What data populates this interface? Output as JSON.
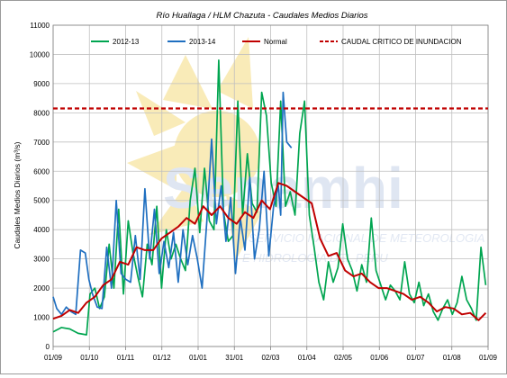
{
  "chart_data": {
    "type": "line",
    "title": "Río Huallaga / HLM Chazuta - Caudales Medios Diarios",
    "ylabel": "Caudales Medios Diarios (m³/s)",
    "xlabel": "",
    "ylim": [
      0,
      11000
    ],
    "yticks": [
      0,
      1000,
      2000,
      3000,
      4000,
      5000,
      6000,
      7000,
      8000,
      9000,
      10000,
      11000
    ],
    "x_tick_labels": [
      "01/09",
      "01/10",
      "01/11",
      "01/12",
      "01/01",
      "31/01",
      "02/03",
      "01/04",
      "02/05",
      "01/06",
      "01/07",
      "01/08",
      "01/09"
    ],
    "grid": true,
    "legend_position": "top",
    "threshold": {
      "name": "CAUDAL CRITICO DE INUNDACION",
      "value": 8150,
      "color": "#c00000"
    },
    "watermark": {
      "logo_text": "Senamhi",
      "line1": "SERVICIO NACIONAL DE METEOROLOGIA",
      "line2": "E HIDROLOGIA DEL PERU"
    },
    "series": [
      {
        "name": "2012-13",
        "color": "#00a550",
        "x": [
          1,
          8,
          15,
          22,
          29,
          32,
          36,
          40,
          44,
          48,
          52,
          56,
          60,
          64,
          68,
          72,
          76,
          80,
          84,
          88,
          92,
          96,
          100,
          104,
          108,
          112,
          116,
          120,
          124,
          128,
          132,
          136,
          140,
          144,
          148,
          152,
          156,
          160,
          164,
          168,
          172,
          176,
          180,
          184,
          188,
          192,
          196,
          200,
          204,
          208,
          212,
          216,
          220,
          224,
          228,
          232,
          236,
          240,
          244,
          248,
          252,
          256,
          260,
          264,
          268,
          272,
          276,
          280,
          284,
          288,
          292,
          296,
          300,
          304,
          308,
          312,
          316,
          320,
          324,
          328,
          332,
          336,
          340,
          344,
          348,
          352,
          356,
          360,
          364
        ],
        "values": [
          500,
          650,
          600,
          450,
          400,
          1800,
          2000,
          1300,
          1700,
          3500,
          2000,
          4700,
          1800,
          4300,
          3200,
          2400,
          1700,
          3500,
          2800,
          4800,
          2000,
          4000,
          3000,
          3500,
          3000,
          2600,
          5000,
          6100,
          3900,
          6100,
          4300,
          4000,
          9800,
          4600,
          3600,
          3800,
          8400,
          4500,
          6600,
          4900,
          4600,
          8700,
          7900,
          5600,
          4800,
          8400,
          4800,
          5300,
          4500,
          7300,
          8400,
          4500,
          3400,
          2200,
          1600,
          2900,
          2200,
          2700,
          4200,
          3000,
          2600,
          1900,
          2800,
          2200,
          4400,
          2600,
          2100,
          1600,
          2100,
          1900,
          1600,
          2900,
          1800,
          1500,
          2200,
          1400,
          1800,
          1200,
          900,
          1300,
          1600,
          1100,
          1500,
          2400,
          1600,
          1300,
          900,
          3400,
          2100
        ]
      },
      {
        "name": "2013-14",
        "color": "#1f6fc0",
        "x": [
          1,
          4,
          8,
          12,
          16,
          20,
          24,
          28,
          31,
          34,
          38,
          42,
          46,
          50,
          54,
          58,
          62,
          66,
          70,
          74,
          78,
          82,
          86,
          90,
          94,
          98,
          102,
          106,
          110,
          114,
          118,
          122,
          126,
          130,
          134,
          138,
          142,
          146,
          150,
          154,
          158,
          162,
          166,
          170,
          174,
          178,
          182,
          186,
          190,
          192,
          194,
          197,
          201
        ],
        "values": [
          1700,
          1300,
          1100,
          1350,
          1200,
          1100,
          3300,
          3200,
          2300,
          1800,
          1350,
          1300,
          3400,
          2000,
          5000,
          2500,
          2300,
          2200,
          3800,
          2300,
          5400,
          3000,
          4700,
          2500,
          3600,
          2700,
          3900,
          2200,
          4000,
          2800,
          3800,
          3000,
          2000,
          4300,
          7100,
          4200,
          5500,
          3600,
          5100,
          2500,
          4400,
          3300,
          5800,
          3000,
          4000,
          6000,
          3100,
          4800,
          5500,
          4500,
          8700,
          7000,
          6800
        ]
      },
      {
        "name": "Normal",
        "color": "#c00000",
        "x": [
          1,
          8,
          15,
          22,
          29,
          36,
          43,
          50,
          57,
          64,
          71,
          78,
          85,
          92,
          99,
          106,
          113,
          120,
          127,
          134,
          141,
          148,
          155,
          162,
          169,
          176,
          183,
          190,
          197,
          204,
          211,
          218,
          225,
          232,
          239,
          246,
          253,
          260,
          267,
          274,
          281,
          288,
          295,
          302,
          309,
          316,
          323,
          330,
          337,
          344,
          351,
          358,
          364
        ],
        "values": [
          950,
          1050,
          1250,
          1150,
          1500,
          1700,
          2100,
          2300,
          2900,
          2800,
          3400,
          3300,
          3300,
          3700,
          3900,
          4100,
          4400,
          4200,
          4800,
          4500,
          4800,
          4400,
          4200,
          4600,
          4400,
          5000,
          4700,
          5600,
          5500,
          5300,
          5100,
          4900,
          3700,
          3100,
          3200,
          2600,
          2400,
          2500,
          2200,
          2000,
          2000,
          1900,
          1800,
          1600,
          1700,
          1500,
          1200,
          1350,
          1300,
          1100,
          1150,
          900,
          1150
        ]
      }
    ]
  }
}
